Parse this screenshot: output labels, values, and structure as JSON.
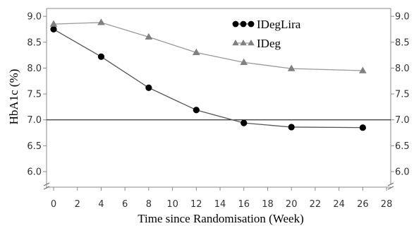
{
  "chart_data": {
    "type": "line",
    "xlabel": "Time since Randomisation (Week)",
    "ylabel": "HbA1c (%)",
    "x_ticks": [
      "0",
      "2",
      "4",
      "6",
      "8",
      "10",
      "12",
      "14",
      "16",
      "18",
      "20",
      "22",
      "24",
      "26",
      "28"
    ],
    "y_ticks": [
      "6.0",
      "6.5",
      "7.0",
      "7.5",
      "8.0",
      "8.5",
      "9.0"
    ],
    "y_ticks_right": [
      "6.0",
      "6.5",
      "7.0",
      "7.5",
      "8.0",
      "8.5",
      "9.0"
    ],
    "xlim": [
      0,
      28
    ],
    "ylim": [
      6.0,
      9.0
    ],
    "axis_break": "y-axis break below 6.0",
    "reference_line": {
      "y": 7.0
    },
    "legend_position": "top-right",
    "series": [
      {
        "name": "IDegLira",
        "marker": "circle",
        "color": "#000000",
        "line_color": "#555555",
        "x": [
          0,
          4,
          8,
          12,
          16,
          20,
          26
        ],
        "y": [
          8.75,
          8.22,
          7.62,
          7.19,
          6.94,
          6.86,
          6.85
        ]
      },
      {
        "name": "IDeg",
        "marker": "triangle",
        "color": "#808080",
        "line_color": "#999999",
        "x": [
          0,
          4,
          8,
          12,
          16,
          20,
          26
        ],
        "y": [
          8.85,
          8.88,
          8.6,
          8.3,
          8.11,
          7.99,
          7.95
        ]
      }
    ]
  }
}
